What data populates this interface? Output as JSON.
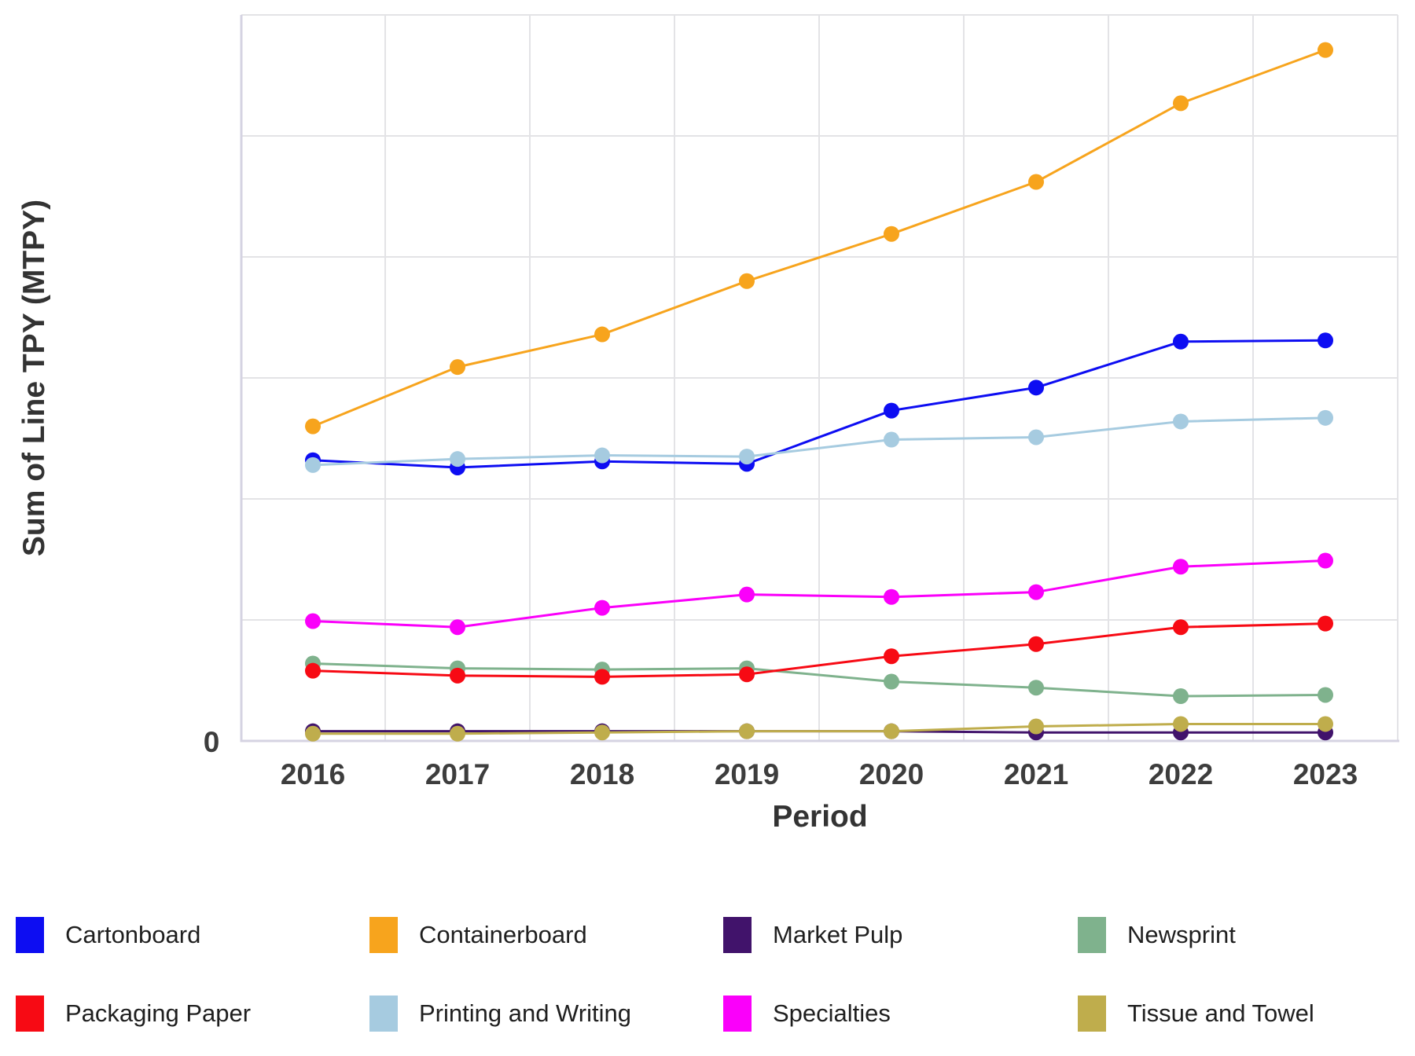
{
  "chart_data": {
    "type": "line",
    "title": "",
    "xlabel": "Period",
    "ylabel": "Sum of Line TPY (MTPY)",
    "x_categories": [
      "2016",
      "2017",
      "2018",
      "2019",
      "2020",
      "2021",
      "2022",
      "2023"
    ],
    "y_axis": {
      "min": 0,
      "max": 6,
      "labeled_ticks": [
        "0"
      ],
      "zero_label": "0",
      "note": "Only the 0 tick is labeled in the source image; series values are estimated in gridline units (1 unit = one horizontal gridline interval, 6 intervals from baseline to top border)."
    },
    "grid": true,
    "legend_position": "bottom",
    "marker": "circle",
    "series": [
      {
        "name": "Cartonboard",
        "color": "#0d0df2",
        "values": [
          2.32,
          2.26,
          2.31,
          2.29,
          2.73,
          2.92,
          3.3,
          3.31
        ]
      },
      {
        "name": "Containerboard",
        "color": "#f7a41d",
        "values": [
          2.6,
          3.09,
          3.36,
          3.8,
          4.19,
          4.62,
          5.27,
          5.71
        ]
      },
      {
        "name": "Market Pulp",
        "color": "#41136b",
        "values": [
          0.08,
          0.08,
          0.08,
          0.08,
          0.08,
          0.07,
          0.07,
          0.07
        ]
      },
      {
        "name": "Newsprint",
        "color": "#7fb28d",
        "values": [
          0.64,
          0.6,
          0.59,
          0.6,
          0.49,
          0.44,
          0.37,
          0.38
        ]
      },
      {
        "name": "Packaging Paper",
        "color": "#f70a14",
        "values": [
          0.58,
          0.54,
          0.53,
          0.55,
          0.7,
          0.8,
          0.94,
          0.97
        ]
      },
      {
        "name": "Printing and Writing",
        "color": "#a6cbe0",
        "values": [
          2.28,
          2.33,
          2.36,
          2.35,
          2.49,
          2.51,
          2.64,
          2.67
        ]
      },
      {
        "name": "Specialties",
        "color": "#fa00fa",
        "values": [
          0.99,
          0.94,
          1.1,
          1.21,
          1.19,
          1.23,
          1.44,
          1.49
        ]
      },
      {
        "name": "Tissue and Towel",
        "color": "#bfad4c",
        "values": [
          0.06,
          0.06,
          0.07,
          0.08,
          0.08,
          0.12,
          0.14,
          0.14
        ]
      }
    ],
    "colors": {
      "gridline": "#e3e3e6",
      "axis_line": "#d5d3e2",
      "tick_text": "#3d3d3d",
      "title_text": "#333333",
      "background": "#ffffff"
    }
  }
}
